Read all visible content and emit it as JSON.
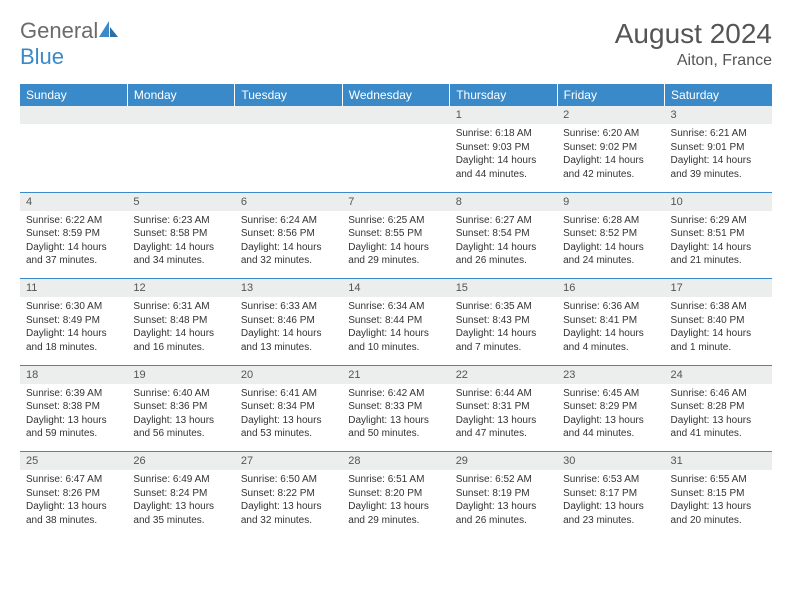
{
  "logo": {
    "text1": "General",
    "text2": "Blue"
  },
  "title": "August 2024",
  "location": "Aiton, France",
  "colors": {
    "header_bg": "#3a8ac9",
    "header_text": "#ffffff",
    "daynum_bg": "#eceded",
    "text": "#333333",
    "accent": "#3a8ac9"
  },
  "weekdays": [
    "Sunday",
    "Monday",
    "Tuesday",
    "Wednesday",
    "Thursday",
    "Friday",
    "Saturday"
  ],
  "weeks": [
    [
      null,
      null,
      null,
      null,
      {
        "n": "1",
        "sr": "Sunrise: 6:18 AM",
        "ss": "Sunset: 9:03 PM",
        "d1": "Daylight: 14 hours",
        "d2": "and 44 minutes."
      },
      {
        "n": "2",
        "sr": "Sunrise: 6:20 AM",
        "ss": "Sunset: 9:02 PM",
        "d1": "Daylight: 14 hours",
        "d2": "and 42 minutes."
      },
      {
        "n": "3",
        "sr": "Sunrise: 6:21 AM",
        "ss": "Sunset: 9:01 PM",
        "d1": "Daylight: 14 hours",
        "d2": "and 39 minutes."
      }
    ],
    [
      {
        "n": "4",
        "sr": "Sunrise: 6:22 AM",
        "ss": "Sunset: 8:59 PM",
        "d1": "Daylight: 14 hours",
        "d2": "and 37 minutes."
      },
      {
        "n": "5",
        "sr": "Sunrise: 6:23 AM",
        "ss": "Sunset: 8:58 PM",
        "d1": "Daylight: 14 hours",
        "d2": "and 34 minutes."
      },
      {
        "n": "6",
        "sr": "Sunrise: 6:24 AM",
        "ss": "Sunset: 8:56 PM",
        "d1": "Daylight: 14 hours",
        "d2": "and 32 minutes."
      },
      {
        "n": "7",
        "sr": "Sunrise: 6:25 AM",
        "ss": "Sunset: 8:55 PM",
        "d1": "Daylight: 14 hours",
        "d2": "and 29 minutes."
      },
      {
        "n": "8",
        "sr": "Sunrise: 6:27 AM",
        "ss": "Sunset: 8:54 PM",
        "d1": "Daylight: 14 hours",
        "d2": "and 26 minutes."
      },
      {
        "n": "9",
        "sr": "Sunrise: 6:28 AM",
        "ss": "Sunset: 8:52 PM",
        "d1": "Daylight: 14 hours",
        "d2": "and 24 minutes."
      },
      {
        "n": "10",
        "sr": "Sunrise: 6:29 AM",
        "ss": "Sunset: 8:51 PM",
        "d1": "Daylight: 14 hours",
        "d2": "and 21 minutes."
      }
    ],
    [
      {
        "n": "11",
        "sr": "Sunrise: 6:30 AM",
        "ss": "Sunset: 8:49 PM",
        "d1": "Daylight: 14 hours",
        "d2": "and 18 minutes."
      },
      {
        "n": "12",
        "sr": "Sunrise: 6:31 AM",
        "ss": "Sunset: 8:48 PM",
        "d1": "Daylight: 14 hours",
        "d2": "and 16 minutes."
      },
      {
        "n": "13",
        "sr": "Sunrise: 6:33 AM",
        "ss": "Sunset: 8:46 PM",
        "d1": "Daylight: 14 hours",
        "d2": "and 13 minutes."
      },
      {
        "n": "14",
        "sr": "Sunrise: 6:34 AM",
        "ss": "Sunset: 8:44 PM",
        "d1": "Daylight: 14 hours",
        "d2": "and 10 minutes."
      },
      {
        "n": "15",
        "sr": "Sunrise: 6:35 AM",
        "ss": "Sunset: 8:43 PM",
        "d1": "Daylight: 14 hours",
        "d2": "and 7 minutes."
      },
      {
        "n": "16",
        "sr": "Sunrise: 6:36 AM",
        "ss": "Sunset: 8:41 PM",
        "d1": "Daylight: 14 hours",
        "d2": "and 4 minutes."
      },
      {
        "n": "17",
        "sr": "Sunrise: 6:38 AM",
        "ss": "Sunset: 8:40 PM",
        "d1": "Daylight: 14 hours",
        "d2": "and 1 minute."
      }
    ],
    [
      {
        "n": "18",
        "sr": "Sunrise: 6:39 AM",
        "ss": "Sunset: 8:38 PM",
        "d1": "Daylight: 13 hours",
        "d2": "and 59 minutes."
      },
      {
        "n": "19",
        "sr": "Sunrise: 6:40 AM",
        "ss": "Sunset: 8:36 PM",
        "d1": "Daylight: 13 hours",
        "d2": "and 56 minutes."
      },
      {
        "n": "20",
        "sr": "Sunrise: 6:41 AM",
        "ss": "Sunset: 8:34 PM",
        "d1": "Daylight: 13 hours",
        "d2": "and 53 minutes."
      },
      {
        "n": "21",
        "sr": "Sunrise: 6:42 AM",
        "ss": "Sunset: 8:33 PM",
        "d1": "Daylight: 13 hours",
        "d2": "and 50 minutes."
      },
      {
        "n": "22",
        "sr": "Sunrise: 6:44 AM",
        "ss": "Sunset: 8:31 PM",
        "d1": "Daylight: 13 hours",
        "d2": "and 47 minutes."
      },
      {
        "n": "23",
        "sr": "Sunrise: 6:45 AM",
        "ss": "Sunset: 8:29 PM",
        "d1": "Daylight: 13 hours",
        "d2": "and 44 minutes."
      },
      {
        "n": "24",
        "sr": "Sunrise: 6:46 AM",
        "ss": "Sunset: 8:28 PM",
        "d1": "Daylight: 13 hours",
        "d2": "and 41 minutes."
      }
    ],
    [
      {
        "n": "25",
        "sr": "Sunrise: 6:47 AM",
        "ss": "Sunset: 8:26 PM",
        "d1": "Daylight: 13 hours",
        "d2": "and 38 minutes."
      },
      {
        "n": "26",
        "sr": "Sunrise: 6:49 AM",
        "ss": "Sunset: 8:24 PM",
        "d1": "Daylight: 13 hours",
        "d2": "and 35 minutes."
      },
      {
        "n": "27",
        "sr": "Sunrise: 6:50 AM",
        "ss": "Sunset: 8:22 PM",
        "d1": "Daylight: 13 hours",
        "d2": "and 32 minutes."
      },
      {
        "n": "28",
        "sr": "Sunrise: 6:51 AM",
        "ss": "Sunset: 8:20 PM",
        "d1": "Daylight: 13 hours",
        "d2": "and 29 minutes."
      },
      {
        "n": "29",
        "sr": "Sunrise: 6:52 AM",
        "ss": "Sunset: 8:19 PM",
        "d1": "Daylight: 13 hours",
        "d2": "and 26 minutes."
      },
      {
        "n": "30",
        "sr": "Sunrise: 6:53 AM",
        "ss": "Sunset: 8:17 PM",
        "d1": "Daylight: 13 hours",
        "d2": "and 23 minutes."
      },
      {
        "n": "31",
        "sr": "Sunrise: 6:55 AM",
        "ss": "Sunset: 8:15 PM",
        "d1": "Daylight: 13 hours",
        "d2": "and 20 minutes."
      }
    ]
  ]
}
